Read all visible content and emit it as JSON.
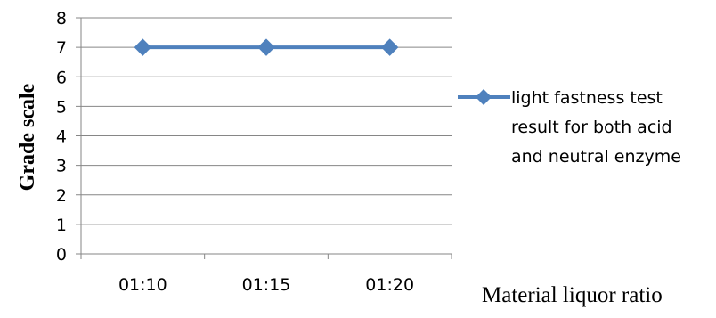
{
  "chart_data": {
    "type": "line",
    "categories": [
      "01:10",
      "01:15",
      "01:20"
    ],
    "series": [
      {
        "name": "light fastness test result for both acid and neutral enzyme",
        "values": [
          7,
          7,
          7
        ],
        "color": "#4f81bd"
      }
    ],
    "legend_lines": [
      "light fastness test",
      "result for both acid",
      "and neutral enzyme"
    ],
    "xlabel": "Material liquor ratio",
    "ylabel": "Grade scale",
    "ylim": [
      0,
      8
    ],
    "yticks": [
      "0",
      "1",
      "2",
      "3",
      "4",
      "5",
      "6",
      "7",
      "8"
    ],
    "grid": true,
    "legend_position": "right",
    "marker": "diamond"
  }
}
